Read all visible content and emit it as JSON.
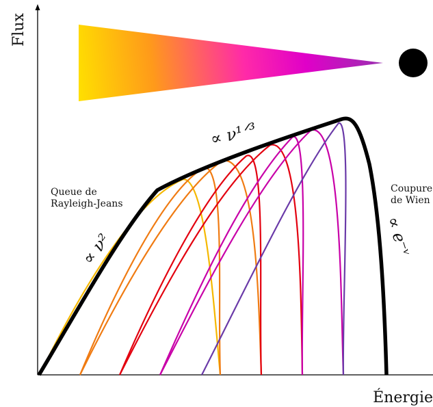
{
  "axes": {
    "x_label": "Énergie",
    "y_label": "Flux"
  },
  "annotations": {
    "rayleigh_jeans": [
      "Queue de",
      "Rayleigh-Jeans"
    ],
    "wien": [
      "Coupure",
      "de Wien"
    ]
  },
  "laws": {
    "low": "∝ ν²",
    "mid": "∝ ν¹ᐟ³",
    "high": "∝ e⁻ᵛ"
  },
  "colors": {
    "envelope": "#000000",
    "component_curves": [
      "#f5b800",
      "#f07b12",
      "#e3000f",
      "#c800a8",
      "#c800a8",
      "#9a1fb0"
    ],
    "component_curves_second_pass": [
      "#f07b12",
      "#e3000f",
      "#c800a8",
      "#6a3aa8"
    ],
    "gradient_stops": [
      "#ffe000",
      "#ff9a1a",
      "#ff2aa8",
      "#e000c8",
      "#9a30b0"
    ],
    "source_dot": "#000000"
  },
  "icons": {
    "cone": "emission-cone-gradient",
    "source": "filled-black-circle"
  }
}
